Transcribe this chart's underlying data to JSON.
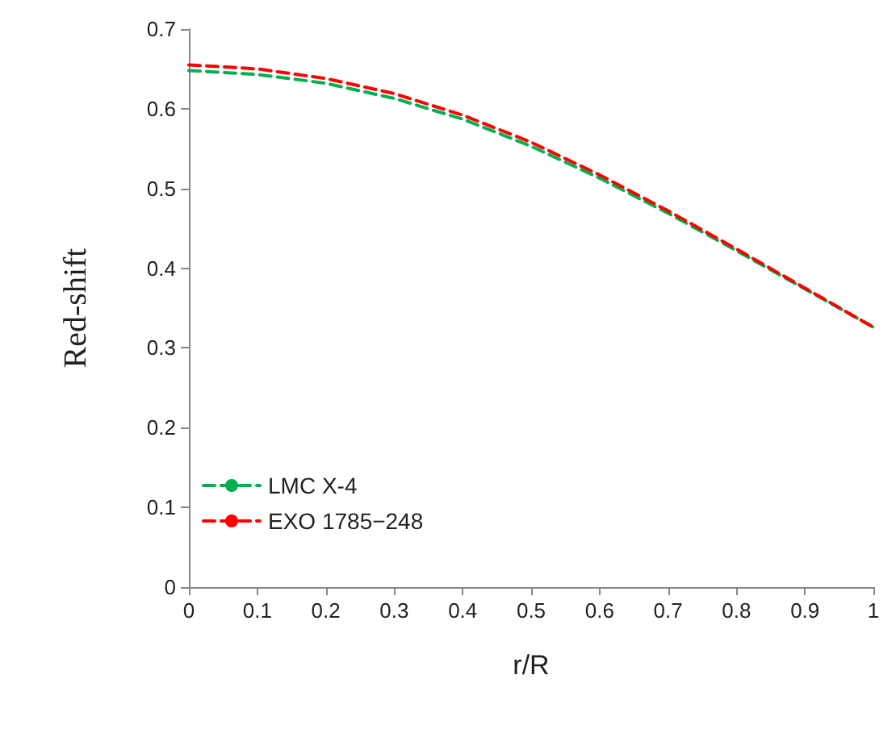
{
  "chart_data": {
    "type": "line",
    "xlabel": "r/R",
    "ylabel": "Red-shift",
    "x": [
      0,
      0.1,
      0.2,
      0.3,
      0.4,
      0.5,
      0.6,
      0.7,
      0.8,
      0.9,
      1
    ],
    "series": [
      {
        "name": "LMC X-4",
        "color": "#00b050",
        "line_style": "dashed",
        "values": [
          0.648,
          0.643,
          0.632,
          0.613,
          0.587,
          0.553,
          0.513,
          0.469,
          0.422,
          0.374,
          0.326
        ]
      },
      {
        "name": "EXO 1785−248",
        "color": "#ff0000",
        "line_style": "dashed",
        "values": [
          0.655,
          0.65,
          0.638,
          0.619,
          0.592,
          0.558,
          0.517,
          0.472,
          0.424,
          0.375,
          0.326
        ]
      }
    ],
    "xlim": [
      0,
      1
    ],
    "xticks": [
      0,
      0.1,
      0.2,
      0.3,
      0.4,
      0.5,
      0.6,
      0.7,
      0.8,
      0.9,
      1
    ],
    "ylim": [
      0,
      0.7
    ],
    "yticks": [
      0,
      0.1,
      0.2,
      0.3,
      0.4,
      0.5,
      0.6,
      0.7
    ],
    "grid": false,
    "legend": "bottom left",
    "marker": "none"
  }
}
